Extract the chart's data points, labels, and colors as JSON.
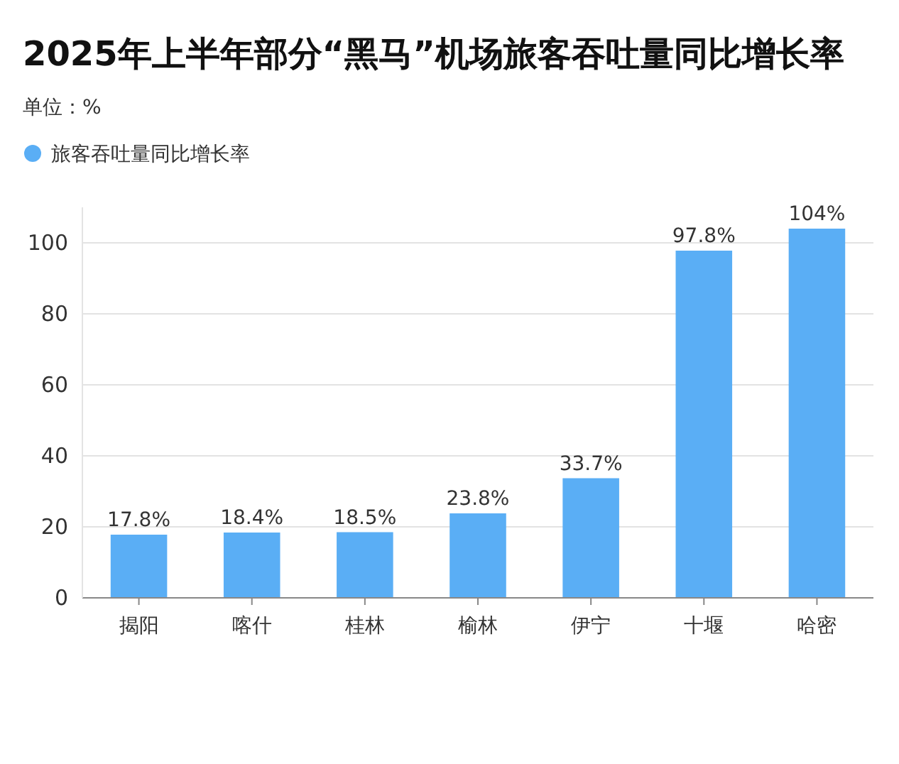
{
  "chart_data": {
    "type": "bar",
    "title": "2025年上半年部分“黑马”机场旅客吞吐量同比增长率",
    "subtitle": "单位：%",
    "categories": [
      "揭阳",
      "喀什",
      "桂林",
      "榆林",
      "伊宁",
      "十堰",
      "哈密"
    ],
    "series": [
      {
        "name": "旅客吞吐量同比增长率",
        "color": "#5aaef5",
        "values": [
          17.8,
          18.4,
          18.5,
          23.8,
          33.7,
          97.8,
          104
        ],
        "value_labels": [
          "17.8%",
          "18.4%",
          "18.5%",
          "23.8%",
          "33.7%",
          "97.8%",
          "104%"
        ]
      }
    ],
    "ylim": [
      0,
      110
    ],
    "yticks": [
      0,
      20,
      40,
      60,
      80,
      100
    ],
    "grid": "y",
    "legend": "top left"
  }
}
